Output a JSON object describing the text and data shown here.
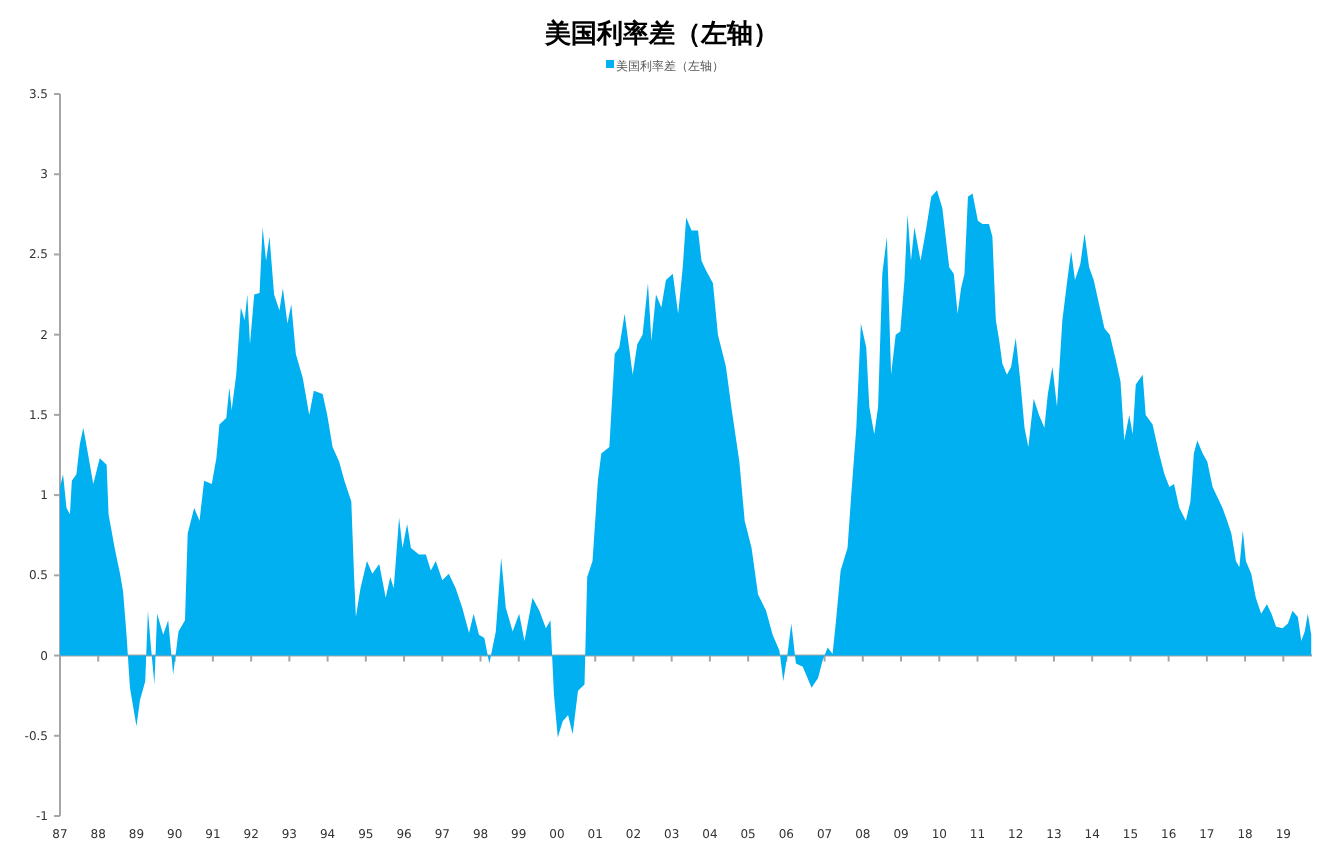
{
  "chart_data": {
    "type": "area",
    "title": "美国利率差（左轴）",
    "legend": "top",
    "x": [
      1987.0,
      1987.08,
      1987.17,
      1987.26,
      1987.31,
      1987.43,
      1987.52,
      1987.61,
      1987.73,
      1987.87,
      1988.04,
      1988.22,
      1988.27,
      1988.43,
      1988.57,
      1988.65,
      1988.74,
      1988.83,
      1989.0,
      1989.09,
      1989.23,
      1989.3,
      1989.38,
      1989.47,
      1989.54,
      1989.7,
      1989.83,
      1989.96,
      1990.1,
      1990.27,
      1990.34,
      1990.51,
      1990.65,
      1990.77,
      1990.97,
      1991.09,
      1991.17,
      1991.35,
      1991.43,
      1991.49,
      1991.61,
      1991.73,
      1991.83,
      1991.9,
      1991.97,
      1992.08,
      1992.22,
      1992.3,
      1992.39,
      1992.48,
      1992.6,
      1992.74,
      1992.83,
      1992.95,
      1993.05,
      1993.17,
      1993.35,
      1993.52,
      1993.64,
      1993.87,
      1993.99,
      1994.13,
      1994.3,
      1994.44,
      1994.62,
      1994.69,
      1994.74,
      1994.86,
      1995.03,
      1995.17,
      1995.35,
      1995.52,
      1995.64,
      1995.73,
      1995.87,
      1995.96,
      1996.08,
      1996.18,
      1996.39,
      1996.57,
      1996.7,
      1996.83,
      1997.0,
      1997.17,
      1997.35,
      1997.52,
      1997.7,
      1997.82,
      1997.96,
      1998.1,
      1998.23,
      1998.4,
      1998.54,
      1998.66,
      1998.84,
      1999.01,
      1999.15,
      1999.36,
      1999.54,
      1999.71,
      1999.83,
      1999.92,
      2000.02,
      2000.15,
      2000.29,
      2000.41,
      2000.55,
      2000.72,
      2000.79,
      2000.93,
      2001.07,
      2001.16,
      2001.37,
      2001.51,
      2001.63,
      2001.77,
      2001.98,
      2002.1,
      2002.24,
      2002.38,
      2002.47,
      2002.59,
      2002.73,
      2002.85,
      2003.03,
      2003.17,
      2003.29,
      2003.38,
      2003.52,
      2003.69,
      2003.78,
      2003.9,
      2004.08,
      2004.21,
      2004.42,
      2004.56,
      2004.77,
      2004.91,
      2005.09,
      2005.26,
      2005.47,
      2005.64,
      2005.82,
      2005.92,
      2006.03,
      2006.13,
      2006.25,
      2006.43,
      2006.66,
      2006.83,
      2006.95,
      2007.08,
      2007.21,
      2007.3,
      2007.42,
      2007.6,
      2007.7,
      2007.83,
      2007.95,
      2008.09,
      2008.17,
      2008.3,
      2008.4,
      2008.51,
      2008.63,
      2008.74,
      2008.86,
      2008.98,
      2009.09,
      2009.17,
      2009.26,
      2009.35,
      2009.51,
      2009.65,
      2009.79,
      2009.94,
      2010.08,
      2010.26,
      2010.38,
      2010.48,
      2010.57,
      2010.66,
      2010.75,
      2010.87,
      2011.01,
      2011.13,
      2011.3,
      2011.39,
      2011.48,
      2011.57,
      2011.65,
      2011.77,
      2011.88,
      2012.0,
      2012.12,
      2012.23,
      2012.33,
      2012.47,
      2012.61,
      2012.75,
      2012.84,
      2012.96,
      2013.08,
      2013.22,
      2013.35,
      2013.45,
      2013.55,
      2013.69,
      2013.8,
      2013.92,
      2014.04,
      2014.18,
      2014.32,
      2014.46,
      2014.62,
      2014.74,
      2014.84,
      2014.97,
      2015.06,
      2015.14,
      2015.32,
      2015.4,
      2015.58,
      2015.75,
      2015.89,
      2016.02,
      2016.14,
      2016.28,
      2016.45,
      2016.57,
      2016.66,
      2016.75,
      2016.89,
      2017.01,
      2017.15,
      2017.29,
      2017.41,
      2017.53,
      2017.64,
      2017.76,
      2017.85,
      2017.94,
      2018.02,
      2018.16,
      2018.28,
      2018.42,
      2018.57,
      2018.69,
      2018.81,
      2018.98,
      2019.12,
      2019.24,
      2019.38,
      2019.47,
      2019.56,
      2019.64,
      2019.73
    ],
    "series": [
      {
        "name": "美国利率差（左轴）",
        "color": "#00b0f0",
        "values": [
          1.05,
          1.13,
          0.92,
          0.88,
          1.09,
          1.13,
          1.32,
          1.42,
          1.26,
          1.07,
          1.23,
          1.19,
          0.88,
          0.67,
          0.51,
          0.4,
          0.13,
          -0.2,
          -0.44,
          -0.28,
          -0.16,
          0.28,
          0.05,
          -0.18,
          0.26,
          0.13,
          0.22,
          -0.12,
          0.15,
          0.22,
          0.76,
          0.92,
          0.84,
          1.09,
          1.07,
          1.23,
          1.44,
          1.48,
          1.67,
          1.53,
          1.75,
          2.17,
          2.09,
          2.25,
          1.94,
          2.25,
          2.26,
          2.67,
          2.46,
          2.61,
          2.25,
          2.15,
          2.29,
          2.07,
          2.19,
          1.88,
          1.73,
          1.5,
          1.65,
          1.63,
          1.5,
          1.3,
          1.21,
          1.09,
          0.96,
          0.51,
          0.24,
          0.42,
          0.59,
          0.51,
          0.57,
          0.36,
          0.49,
          0.42,
          0.86,
          0.67,
          0.82,
          0.67,
          0.63,
          0.63,
          0.53,
          0.59,
          0.47,
          0.51,
          0.42,
          0.3,
          0.14,
          0.26,
          0.13,
          0.11,
          -0.05,
          0.15,
          0.61,
          0.3,
          0.15,
          0.26,
          0.09,
          0.36,
          0.28,
          0.17,
          0.22,
          -0.24,
          -0.51,
          -0.41,
          -0.37,
          -0.49,
          -0.22,
          -0.18,
          0.49,
          0.59,
          1.09,
          1.26,
          1.3,
          1.88,
          1.92,
          2.13,
          1.75,
          1.94,
          2.0,
          2.32,
          1.96,
          2.25,
          2.17,
          2.34,
          2.38,
          2.13,
          2.42,
          2.73,
          2.65,
          2.65,
          2.46,
          2.4,
          2.32,
          2.0,
          1.8,
          1.55,
          1.21,
          0.84,
          0.67,
          0.38,
          0.28,
          0.13,
          0.03,
          -0.16,
          0.01,
          0.2,
          -0.05,
          -0.07,
          -0.2,
          -0.14,
          -0.03,
          0.05,
          0.01,
          0.22,
          0.53,
          0.67,
          1.01,
          1.42,
          2.07,
          1.92,
          1.55,
          1.38,
          1.55,
          2.38,
          2.61,
          1.75,
          2.0,
          2.02,
          2.34,
          2.75,
          2.46,
          2.67,
          2.46,
          2.65,
          2.86,
          2.9,
          2.79,
          2.42,
          2.38,
          2.13,
          2.29,
          2.38,
          2.86,
          2.88,
          2.71,
          2.69,
          2.69,
          2.61,
          2.09,
          1.96,
          1.82,
          1.75,
          1.8,
          1.98,
          1.71,
          1.42,
          1.3,
          1.6,
          1.5,
          1.42,
          1.63,
          1.8,
          1.55,
          2.09,
          2.34,
          2.52,
          2.34,
          2.44,
          2.63,
          2.42,
          2.34,
          2.19,
          2.04,
          2.0,
          1.84,
          1.71,
          1.34,
          1.5,
          1.38,
          1.69,
          1.75,
          1.5,
          1.44,
          1.26,
          1.13,
          1.05,
          1.07,
          0.92,
          0.84,
          0.96,
          1.26,
          1.34,
          1.26,
          1.21,
          1.05,
          0.98,
          0.92,
          0.84,
          0.76,
          0.59,
          0.55,
          0.78,
          0.59,
          0.51,
          0.36,
          0.26,
          0.32,
          0.26,
          0.18,
          0.17,
          0.2,
          0.28,
          0.24,
          0.09,
          0.15,
          0.26,
          0.13
        ]
      }
    ],
    "xlim": [
      1987.0,
      2019.75
    ],
    "xticks": [
      {
        "value": 1987,
        "label": "87"
      },
      {
        "value": 1988,
        "label": "88"
      },
      {
        "value": 1989,
        "label": "89"
      },
      {
        "value": 1990,
        "label": "90"
      },
      {
        "value": 1991,
        "label": "91"
      },
      {
        "value": 1992,
        "label": "92"
      },
      {
        "value": 1993,
        "label": "93"
      },
      {
        "value": 1994,
        "label": "94"
      },
      {
        "value": 1995,
        "label": "95"
      },
      {
        "value": 1996,
        "label": "96"
      },
      {
        "value": 1997,
        "label": "97"
      },
      {
        "value": 1998,
        "label": "98"
      },
      {
        "value": 1999,
        "label": "99"
      },
      {
        "value": 2000,
        "label": "00"
      },
      {
        "value": 2001,
        "label": "01"
      },
      {
        "value": 2002,
        "label": "02"
      },
      {
        "value": 2003,
        "label": "03"
      },
      {
        "value": 2004,
        "label": "04"
      },
      {
        "value": 2005,
        "label": "05"
      },
      {
        "value": 2006,
        "label": "06"
      },
      {
        "value": 2007,
        "label": "07"
      },
      {
        "value": 2008,
        "label": "08"
      },
      {
        "value": 2009,
        "label": "09"
      },
      {
        "value": 2010,
        "label": "10"
      },
      {
        "value": 2011,
        "label": "11"
      },
      {
        "value": 2012,
        "label": "12"
      },
      {
        "value": 2013,
        "label": "13"
      },
      {
        "value": 2014,
        "label": "14"
      },
      {
        "value": 2015,
        "label": "15"
      },
      {
        "value": 2016,
        "label": "16"
      },
      {
        "value": 2017,
        "label": "17"
      },
      {
        "value": 2018,
        "label": "18"
      },
      {
        "value": 2019,
        "label": "19"
      }
    ],
    "ylim": [
      -1,
      3.5
    ],
    "yticks": [
      -1,
      -0.5,
      0,
      0.5,
      1,
      1.5,
      2,
      2.5,
      3,
      3.5
    ]
  }
}
